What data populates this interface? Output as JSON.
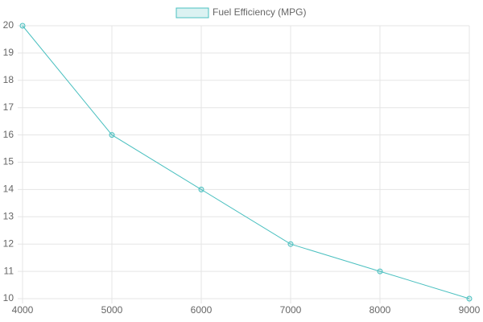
{
  "chart_data": {
    "type": "line",
    "x": [
      4000,
      5000,
      6000,
      7000,
      8000,
      9000
    ],
    "series": [
      {
        "name": "Fuel Efficiency (MPG)",
        "color": "#4bc0c0",
        "values": [
          20,
          16,
          14,
          12,
          11,
          10
        ]
      }
    ],
    "xlim": [
      4000,
      9000
    ],
    "xticks": [
      4000,
      5000,
      6000,
      7000,
      8000,
      9000
    ],
    "ylim": [
      10,
      20
    ],
    "yticks": [
      10,
      11,
      12,
      13,
      14,
      15,
      16,
      17,
      18,
      19,
      20
    ],
    "grid": true,
    "legend": "top"
  }
}
